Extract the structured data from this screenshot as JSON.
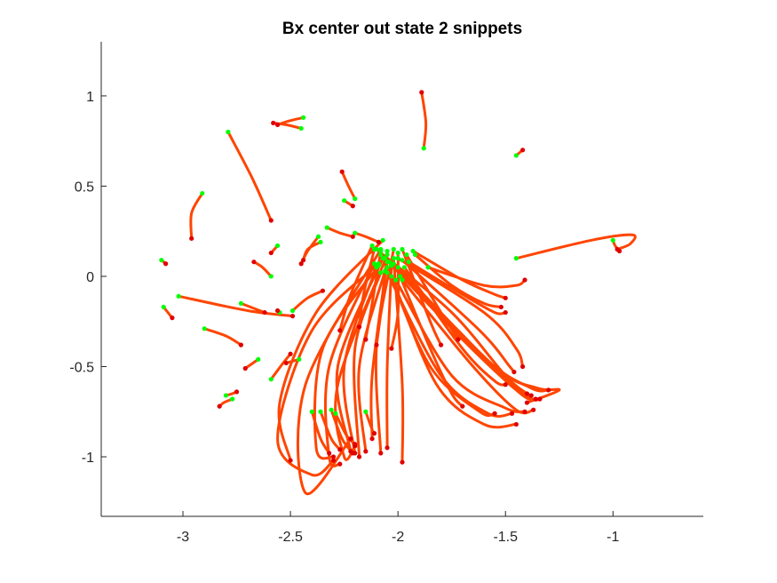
{
  "chart_data": {
    "type": "line",
    "title": "Bx  center out state 2 snippets",
    "xlabel": "",
    "ylabel": "",
    "xlim": [
      -3.38,
      -0.58
    ],
    "ylim": [
      -1.33,
      1.3
    ],
    "xticks": [
      -3,
      -2.5,
      -2,
      -1.5,
      -1
    ],
    "xtick_labels": [
      "-3",
      "-2.5",
      "-2",
      "-1.5",
      "-1"
    ],
    "yticks": [
      1,
      0.5,
      0,
      -0.5,
      -1
    ],
    "ytick_labels": [
      "1",
      "0.5",
      "0",
      "-0.5",
      "-1"
    ],
    "grid": false,
    "legend": "none",
    "colors": {
      "line": "#FF4500",
      "start_marker": "#00FF00",
      "end_marker": "#E00000",
      "axis": "#262626"
    },
    "series": [
      {
        "points": [
          [
            -1.88,
            0.71
          ],
          [
            -1.87,
            0.85
          ],
          [
            -1.89,
            1.02
          ]
        ]
      },
      {
        "points": [
          [
            -2.79,
            0.8
          ],
          [
            -2.68,
            0.55
          ],
          [
            -2.59,
            0.31
          ]
        ]
      },
      {
        "points": [
          [
            -2.91,
            0.46
          ],
          [
            -2.96,
            0.35
          ],
          [
            -2.96,
            0.21
          ]
        ]
      },
      {
        "points": [
          [
            -2.45,
            0.82
          ],
          [
            -2.52,
            0.84
          ],
          [
            -2.58,
            0.85
          ]
        ]
      },
      {
        "points": [
          [
            -2.44,
            0.88
          ],
          [
            -2.51,
            0.86
          ],
          [
            -2.56,
            0.84
          ]
        ]
      },
      {
        "points": [
          [
            -1.45,
            0.67
          ],
          [
            -1.43,
            0.69
          ],
          [
            -1.42,
            0.7
          ]
        ]
      },
      {
        "points": [
          [
            -2.2,
            0.43
          ],
          [
            -2.23,
            0.5
          ],
          [
            -2.26,
            0.58
          ]
        ]
      },
      {
        "points": [
          [
            -2.25,
            0.42
          ],
          [
            -2.21,
            0.39
          ]
        ]
      },
      {
        "points": [
          [
            -1.45,
            0.1
          ],
          [
            -1.1,
            0.2
          ],
          [
            -0.91,
            0.23
          ],
          [
            -0.92,
            0.18
          ],
          [
            -0.98,
            0.15
          ]
        ]
      },
      {
        "points": [
          [
            -1.0,
            0.2
          ],
          [
            -0.99,
            0.17
          ],
          [
            -0.97,
            0.14
          ]
        ]
      },
      {
        "points": [
          [
            -3.1,
            0.09
          ],
          [
            -3.08,
            0.07
          ]
        ]
      },
      {
        "points": [
          [
            -3.09,
            -0.17
          ],
          [
            -3.05,
            -0.23
          ]
        ]
      },
      {
        "points": [
          [
            -2.56,
            0.17
          ],
          [
            -2.59,
            0.13
          ]
        ]
      },
      {
        "points": [
          [
            -2.37,
            0.22
          ],
          [
            -2.42,
            0.14
          ],
          [
            -2.45,
            0.07
          ]
        ]
      },
      {
        "points": [
          [
            -2.36,
            0.19
          ],
          [
            -2.42,
            0.15
          ],
          [
            -2.44,
            0.09
          ]
        ]
      },
      {
        "points": [
          [
            -2.59,
            0.0
          ],
          [
            -2.63,
            0.05
          ],
          [
            -2.67,
            0.08
          ]
        ]
      },
      {
        "points": [
          [
            -3.02,
            -0.11
          ],
          [
            -2.7,
            -0.19
          ],
          [
            -2.49,
            -0.22
          ]
        ]
      },
      {
        "points": [
          [
            -2.9,
            -0.29
          ],
          [
            -2.8,
            -0.33
          ],
          [
            -2.73,
            -0.38
          ]
        ]
      },
      {
        "points": [
          [
            -2.55,
            -0.2
          ],
          [
            -2.56,
            -0.19
          ]
        ]
      },
      {
        "points": [
          [
            -2.73,
            -0.15
          ],
          [
            -2.62,
            -0.2
          ]
        ]
      },
      {
        "points": [
          [
            -2.49,
            -0.19
          ],
          [
            -2.42,
            -0.12
          ],
          [
            -2.35,
            -0.08
          ]
        ]
      },
      {
        "points": [
          [
            -2.65,
            -0.46
          ],
          [
            -2.71,
            -0.51
          ]
        ]
      },
      {
        "points": [
          [
            -2.59,
            -0.57
          ],
          [
            -2.54,
            -0.49
          ],
          [
            -2.5,
            -0.43
          ]
        ]
      },
      {
        "points": [
          [
            -2.46,
            -0.46
          ],
          [
            -2.52,
            -0.48
          ]
        ]
      },
      {
        "points": [
          [
            -2.77,
            -0.68
          ],
          [
            -2.81,
            -0.7
          ],
          [
            -2.83,
            -0.72
          ]
        ]
      },
      {
        "points": [
          [
            -2.8,
            -0.66
          ],
          [
            -2.77,
            -0.65
          ],
          [
            -2.75,
            -0.64
          ]
        ]
      },
      {
        "points": [
          [
            -2.2,
            0.24
          ],
          [
            -2.15,
            0.22
          ],
          [
            -2.09,
            0.19
          ]
        ]
      },
      {
        "points": [
          [
            -2.33,
            0.27
          ],
          [
            -2.27,
            0.24
          ],
          [
            -2.21,
            0.22
          ]
        ]
      },
      {
        "points": [
          [
            -2.07,
            0.2
          ],
          [
            -2.38,
            -0.2
          ],
          [
            -2.55,
            -0.7
          ],
          [
            -2.5,
            -1.02
          ]
        ]
      },
      {
        "points": [
          [
            -2.09,
            0.06
          ],
          [
            -2.35,
            -0.4
          ],
          [
            -2.38,
            -0.95
          ],
          [
            -2.3,
            -1.0
          ]
        ]
      },
      {
        "points": [
          [
            -2.11,
            0.07
          ],
          [
            -2.32,
            -0.5
          ],
          [
            -2.32,
            -1.0
          ],
          [
            -2.27,
            -1.04
          ]
        ]
      },
      {
        "points": [
          [
            -2.07,
            0.1
          ],
          [
            -2.28,
            -0.5
          ],
          [
            -2.22,
            -0.97
          ]
        ]
      },
      {
        "points": [
          [
            -2.1,
            0.05
          ],
          [
            -2.25,
            -0.5
          ],
          [
            -2.2,
            -0.98
          ]
        ]
      },
      {
        "points": [
          [
            -2.08,
            0.02
          ],
          [
            -2.2,
            -0.4
          ],
          [
            -2.18,
            -1.0
          ]
        ]
      },
      {
        "points": [
          [
            -2.06,
            0.03
          ],
          [
            -2.18,
            -0.5
          ],
          [
            -2.15,
            -0.97
          ]
        ]
      },
      {
        "points": [
          [
            -2.05,
            0.08
          ],
          [
            -2.12,
            -0.55
          ],
          [
            -2.12,
            -0.9
          ]
        ]
      },
      {
        "points": [
          [
            -2.03,
            0.06
          ],
          [
            -2.05,
            -0.5
          ],
          [
            -2.05,
            -0.95
          ]
        ]
      },
      {
        "points": [
          [
            -2.02,
            0.1
          ],
          [
            -1.98,
            -0.6
          ],
          [
            -1.98,
            -1.03
          ]
        ]
      },
      {
        "points": [
          [
            -2.09,
            0.07
          ],
          [
            -2.4,
            -0.3
          ],
          [
            -2.56,
            -0.9
          ],
          [
            -2.4,
            -1.1
          ],
          [
            -2.3,
            -1.02
          ]
        ]
      },
      {
        "points": [
          [
            -2.08,
            0.15
          ],
          [
            -2.43,
            -0.6
          ],
          [
            -2.43,
            -1.2
          ],
          [
            -2.22,
            -0.9
          ]
        ]
      },
      {
        "points": [
          [
            -2.05,
            0.12
          ],
          [
            -2.28,
            -0.6
          ],
          [
            -2.25,
            -1.0
          ],
          [
            -2.2,
            -0.94
          ]
        ]
      },
      {
        "points": [
          [
            -2.02,
            0.15
          ],
          [
            -2.1,
            -0.4
          ],
          [
            -2.08,
            -0.98
          ]
        ]
      },
      {
        "points": [
          [
            -2.4,
            -0.75
          ],
          [
            -2.36,
            -0.9
          ],
          [
            -2.32,
            -0.98
          ]
        ]
      },
      {
        "points": [
          [
            -2.36,
            -0.75
          ],
          [
            -2.31,
            -0.9
          ],
          [
            -2.27,
            -0.96
          ]
        ]
      },
      {
        "points": [
          [
            -2.31,
            -0.74
          ],
          [
            -2.26,
            -0.9
          ],
          [
            -2.21,
            -0.98
          ]
        ]
      },
      {
        "points": [
          [
            -2.29,
            -0.76
          ],
          [
            -2.24,
            -0.88
          ],
          [
            -2.2,
            -0.93
          ]
        ]
      },
      {
        "points": [
          [
            -2.15,
            -0.75
          ],
          [
            -2.12,
            -0.85
          ],
          [
            -2.11,
            -0.87
          ]
        ]
      },
      {
        "points": [
          [
            -2.1,
            0.15
          ],
          [
            -1.75,
            -0.2
          ],
          [
            -1.5,
            -0.55
          ],
          [
            -1.4,
            -0.65
          ]
        ]
      },
      {
        "points": [
          [
            -2.08,
            0.12
          ],
          [
            -1.72,
            -0.3
          ],
          [
            -1.48,
            -0.6
          ],
          [
            -1.38,
            -0.66
          ]
        ]
      },
      {
        "points": [
          [
            -2.06,
            0.1
          ],
          [
            -1.7,
            -0.35
          ],
          [
            -1.43,
            -0.65
          ],
          [
            -1.36,
            -0.68
          ]
        ]
      },
      {
        "points": [
          [
            -2.04,
            0.08
          ],
          [
            -1.65,
            -0.4
          ],
          [
            -1.4,
            -0.66
          ],
          [
            -1.34,
            -0.68
          ]
        ]
      },
      {
        "points": [
          [
            -2.02,
            0.07
          ],
          [
            -1.6,
            -0.45
          ],
          [
            -1.38,
            -0.62
          ],
          [
            -1.3,
            -0.63
          ]
        ]
      },
      {
        "points": [
          [
            -2.0,
            0.05
          ],
          [
            -1.55,
            -0.5
          ],
          [
            -1.35,
            -0.62
          ],
          [
            -1.25,
            -0.63
          ],
          [
            -1.4,
            -0.7
          ]
        ]
      },
      {
        "points": [
          [
            -2.0,
            0.1
          ],
          [
            -1.6,
            -0.2
          ],
          [
            -1.45,
            -0.4
          ],
          [
            -1.42,
            -0.5
          ]
        ]
      },
      {
        "points": [
          [
            -1.98,
            0.09
          ],
          [
            -1.62,
            -0.3
          ],
          [
            -1.48,
            -0.5
          ],
          [
            -1.46,
            -0.53
          ]
        ]
      },
      {
        "points": [
          [
            -1.97,
            0.05
          ],
          [
            -1.7,
            -0.4
          ],
          [
            -1.55,
            -0.58
          ],
          [
            -1.5,
            -0.6
          ]
        ]
      },
      {
        "points": [
          [
            -2.05,
            0.05
          ],
          [
            -1.85,
            -0.5
          ],
          [
            -1.62,
            -0.75
          ],
          [
            -1.55,
            -0.76
          ]
        ]
      },
      {
        "points": [
          [
            -2.05,
            0.02
          ],
          [
            -1.8,
            -0.55
          ],
          [
            -1.58,
            -0.76
          ],
          [
            -1.47,
            -0.76
          ]
        ]
      },
      {
        "points": [
          [
            -2.03,
            0.0
          ],
          [
            -1.82,
            -0.6
          ],
          [
            -1.6,
            -0.82
          ],
          [
            -1.45,
            -0.82
          ]
        ]
      },
      {
        "points": [
          [
            -2.01,
            -0.02
          ],
          [
            -1.75,
            -0.55
          ],
          [
            -1.5,
            -0.73
          ],
          [
            -1.41,
            -0.75
          ]
        ]
      },
      {
        "points": [
          [
            -1.98,
            -0.02
          ],
          [
            -1.65,
            -0.5
          ],
          [
            -1.45,
            -0.74
          ],
          [
            -1.37,
            -0.74
          ]
        ]
      },
      {
        "points": [
          [
            -1.99,
            0.0
          ],
          [
            -1.85,
            -0.4
          ],
          [
            -1.75,
            -0.65
          ],
          [
            -1.7,
            -0.72
          ]
        ]
      },
      {
        "points": [
          [
            -1.95,
            0.08
          ],
          [
            -1.7,
            -0.1
          ],
          [
            -1.55,
            -0.2
          ],
          [
            -1.5,
            -0.2
          ]
        ]
      },
      {
        "points": [
          [
            -1.92,
            0.12
          ],
          [
            -1.75,
            -0.05
          ],
          [
            -1.6,
            -0.15
          ],
          [
            -1.52,
            -0.17
          ]
        ]
      },
      {
        "points": [
          [
            -1.93,
            0.14
          ],
          [
            -1.7,
            -0.02
          ],
          [
            -1.55,
            -0.1
          ],
          [
            -1.5,
            -0.12
          ]
        ]
      },
      {
        "points": [
          [
            -1.86,
            0.05
          ],
          [
            -1.6,
            -0.05
          ],
          [
            -1.45,
            -0.05
          ],
          [
            -1.41,
            -0.02
          ]
        ]
      },
      {
        "points": [
          [
            -2.12,
            0.17
          ],
          [
            -2.22,
            -0.1
          ],
          [
            -2.27,
            -0.3
          ]
        ]
      },
      {
        "points": [
          [
            -2.11,
            0.15
          ],
          [
            -2.16,
            -0.1
          ],
          [
            -2.18,
            -0.28
          ]
        ]
      },
      {
        "points": [
          [
            -2.08,
            0.14
          ],
          [
            -2.12,
            -0.15
          ],
          [
            -2.15,
            -0.35
          ]
        ]
      },
      {
        "points": [
          [
            -2.05,
            0.14
          ],
          [
            -2.08,
            -0.2
          ],
          [
            -2.1,
            -0.38
          ]
        ]
      },
      {
        "points": [
          [
            -2.0,
            0.13
          ],
          [
            -2.0,
            -0.2
          ],
          [
            -2.03,
            -0.4
          ]
        ]
      },
      {
        "points": [
          [
            -1.98,
            0.15
          ],
          [
            -1.85,
            -0.25
          ],
          [
            -1.8,
            -0.38
          ]
        ]
      },
      {
        "points": [
          [
            -1.96,
            0.12
          ],
          [
            -1.8,
            -0.2
          ],
          [
            -1.72,
            -0.35
          ]
        ]
      }
    ]
  }
}
